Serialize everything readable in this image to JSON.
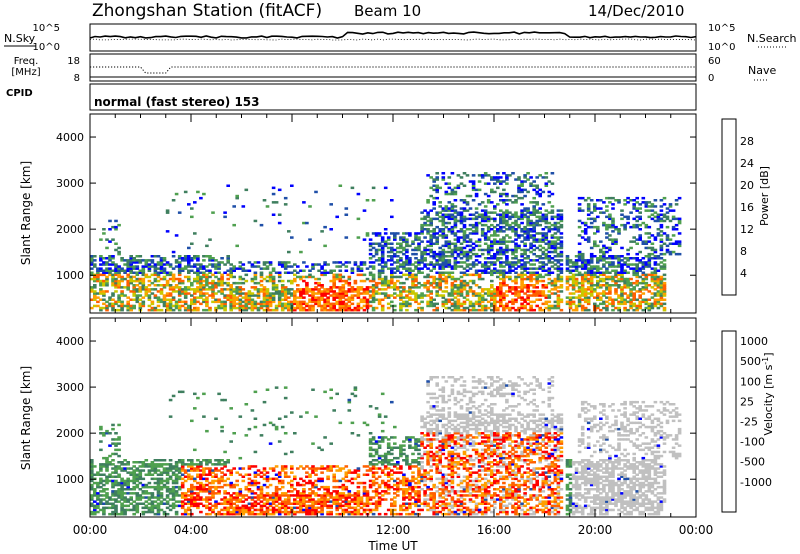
{
  "header": {
    "title": "Zhongshan Station (fitACF)",
    "beam": "Beam 10",
    "date": "14/Dec/2010"
  },
  "ancillary": {
    "nsky_label": "N.Sky",
    "nsearch_label": "N.Search",
    "freq_label_1": "Freq.",
    "freq_label_2": "[MHz]",
    "nave_label": "Nave",
    "cpid_label": "CPID",
    "cpid_text": "normal (fast stereo) 153",
    "noise_ticks_left": [
      "10^5",
      "10^0"
    ],
    "noise_ticks_right": [
      "10^5",
      "10^0"
    ],
    "freq_ticks": [
      "18",
      "8"
    ],
    "nave_ticks": [
      "60",
      "0"
    ]
  },
  "colors": {
    "power": [
      "#0000ff",
      "#1f4fa8",
      "#3f7f5f",
      "#4fa04f",
      "#c8c800",
      "#ff9f00",
      "#ff6000",
      "#ff0000"
    ],
    "velocity": [
      "#ff0000",
      "#ff6000",
      "#ff9f00",
      "#c0c0c0",
      "#c0c0c0",
      "#4fa04f",
      "#3f7f5f",
      "#1f4fa8",
      "#0000ff"
    ]
  },
  "chart_data": [
    {
      "type": "heatmap",
      "name": "power",
      "ylabel": "Slant Range [km]",
      "ylim": [
        180,
        4500
      ],
      "yticks": [
        1000,
        2000,
        3000,
        4000
      ],
      "xlim": [
        0,
        24
      ],
      "colorbar_label": "Power [dB]",
      "colorbar_ticks": [
        "4",
        "8",
        "12",
        "16",
        "20",
        "24",
        "28"
      ],
      "colorbar_range": [
        0,
        32
      ]
    },
    {
      "type": "heatmap",
      "name": "velocity",
      "ylabel": "Slant Range [km]",
      "ylim": [
        180,
        4500
      ],
      "yticks": [
        1000,
        2000,
        3000,
        4000
      ],
      "xlim": [
        0,
        24
      ],
      "xlabel": "Time UT",
      "xticks": [
        "00:00",
        "04:00",
        "08:00",
        "12:00",
        "16:00",
        "20:00",
        "00:00"
      ],
      "colorbar_label": "Velocity [m s^-1]",
      "colorbar_ticks": [
        "1000",
        "500",
        "100",
        "25",
        "-25",
        "-100",
        "-500",
        "-1000"
      ]
    }
  ]
}
